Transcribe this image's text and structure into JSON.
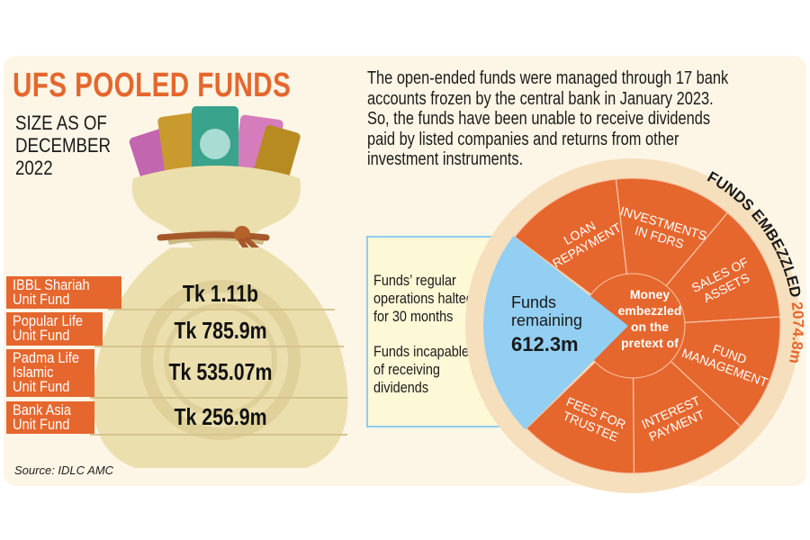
{
  "title": "UFS POOLED FUNDS",
  "subtitle_lines": [
    "SIZE AS OF",
    "DECEMBER",
    "2022"
  ],
  "description_lines": [
    "The open-ended funds were managed through 17 bank",
    "accounts frozen by the central bank in January 2023.",
    "So, the funds have been unable to receive dividends",
    "paid by listed companies and returns from other",
    "investment instruments."
  ],
  "funds": [
    {
      "name_lines": [
        "IBBL Shariah",
        "Unit Fund"
      ],
      "value": "Tk 1.11b"
    },
    {
      "name_lines": [
        "Popular Life",
        "Unit Fund"
      ],
      "value": "Tk 785.9m"
    },
    {
      "name_lines": [
        "Padma Life",
        "Islamic",
        "Unit Fund"
      ],
      "value": "Tk 535.07m"
    },
    {
      "name_lines": [
        "Bank Asia",
        "Unit Fund"
      ],
      "value": "Tk 256.9m"
    }
  ],
  "source": "Source: IDLC AMC",
  "info_box": {
    "point1_lines": [
      "Funds’ regular",
      "operations halted",
      "for 30 months"
    ],
    "point2_lines": [
      "Funds incapable",
      "of receiving",
      "dividends"
    ]
  },
  "wheel": {
    "remaining_label_lines": [
      "Funds",
      "remaining"
    ],
    "remaining_value": "612.3m",
    "center_lines": [
      "Money",
      "embezzled",
      "on the",
      "pretext of"
    ],
    "ring_label": "FUNDS EMBEZZLED",
    "ring_value": "2074.8m",
    "segments": [
      {
        "lines": [
          "LOAN",
          "REPAYMENT"
        ]
      },
      {
        "lines": [
          "INVESTMENTS",
          "IN FDRS"
        ]
      },
      {
        "lines": [
          "SALES OF",
          "ASSETS"
        ]
      },
      {
        "lines": [
          "FUND",
          "MANAGEMENT"
        ]
      },
      {
        "lines": [
          "INTEREST",
          "PAYMENT"
        ]
      },
      {
        "lines": [
          "FEES FOR",
          "TRUSTEE"
        ]
      }
    ]
  },
  "colors": {
    "orange": "#e5672e",
    "blue": "#93cff2",
    "cream": "#fdf6e6",
    "ring": "#f6dfbd"
  }
}
